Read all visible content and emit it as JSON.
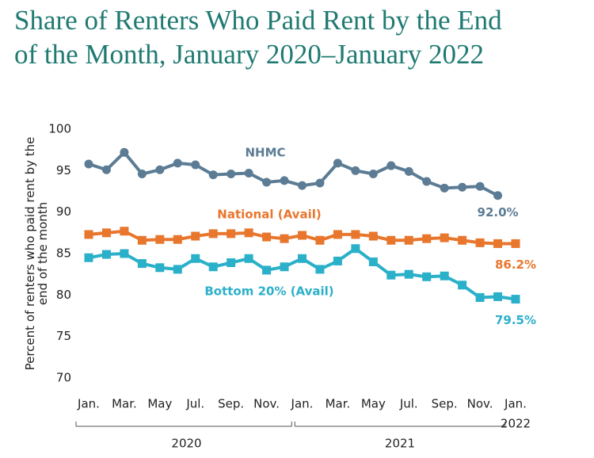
{
  "chart_data": {
    "type": "line",
    "title": "Share of Renters Who Paid Rent by the End of the Month, January 2020–January 2022",
    "ylabel": "Percent of renters who paid rent by the end of the month",
    "categories": [
      "Jan.",
      null,
      "Mar.",
      null,
      "May",
      null,
      "Jul.",
      null,
      "Sep.",
      null,
      "Nov.",
      null,
      "Jan.",
      null,
      "Mar.",
      null,
      "May",
      null,
      "Jul.",
      null,
      "Sep.",
      null,
      "Nov.",
      null,
      "Jan."
    ],
    "years": [
      "2020",
      "2021",
      "2022"
    ],
    "ylim": [
      70,
      100
    ],
    "yticks": [
      70,
      75,
      80,
      85,
      90,
      95,
      100
    ],
    "grid": false,
    "series": [
      {
        "name": "NHMC",
        "color": "#5b7c94",
        "marker": "circle",
        "values": [
          95.8,
          95.1,
          97.2,
          94.6,
          95.1,
          95.9,
          95.7,
          94.5,
          94.6,
          94.7,
          93.6,
          93.8,
          93.2,
          93.5,
          95.9,
          95.0,
          94.6,
          95.6,
          94.9,
          93.7,
          92.9,
          93.0,
          93.1,
          92.0,
          null
        ],
        "value_labels": [
          null,
          null,
          null,
          null,
          null,
          null,
          null,
          null,
          null,
          null,
          null,
          null,
          null,
          null,
          null,
          null,
          null,
          null,
          null,
          null,
          null,
          null,
          null,
          "92.0%",
          null
        ]
      },
      {
        "name": "National (Avail)",
        "color": "#e8762d",
        "marker": "square",
        "values": [
          87.3,
          87.5,
          87.7,
          86.6,
          86.7,
          86.7,
          87.1,
          87.4,
          87.4,
          87.5,
          87.0,
          86.8,
          87.2,
          86.6,
          87.3,
          87.3,
          87.1,
          86.6,
          86.6,
          86.8,
          86.9,
          86.6,
          86.3,
          86.2,
          86.2
        ],
        "value_labels": [
          null,
          null,
          null,
          null,
          null,
          null,
          null,
          null,
          null,
          null,
          null,
          null,
          null,
          null,
          null,
          null,
          null,
          null,
          null,
          null,
          null,
          null,
          null,
          null,
          "86.2%"
        ]
      },
      {
        "name": "Bottom 20% (Avail)",
        "color": "#2bb0c9",
        "marker": "square",
        "values": [
          84.5,
          84.9,
          85.0,
          83.8,
          83.3,
          83.1,
          84.4,
          83.4,
          83.9,
          84.4,
          83.0,
          83.4,
          84.4,
          83.1,
          84.1,
          85.6,
          84.0,
          82.4,
          82.5,
          82.2,
          82.3,
          81.2,
          79.7,
          79.8,
          79.5
        ],
        "value_labels": [
          null,
          null,
          null,
          null,
          null,
          null,
          null,
          null,
          null,
          null,
          null,
          null,
          null,
          null,
          null,
          null,
          null,
          null,
          null,
          null,
          null,
          null,
          null,
          null,
          "79.5%"
        ]
      }
    ]
  }
}
